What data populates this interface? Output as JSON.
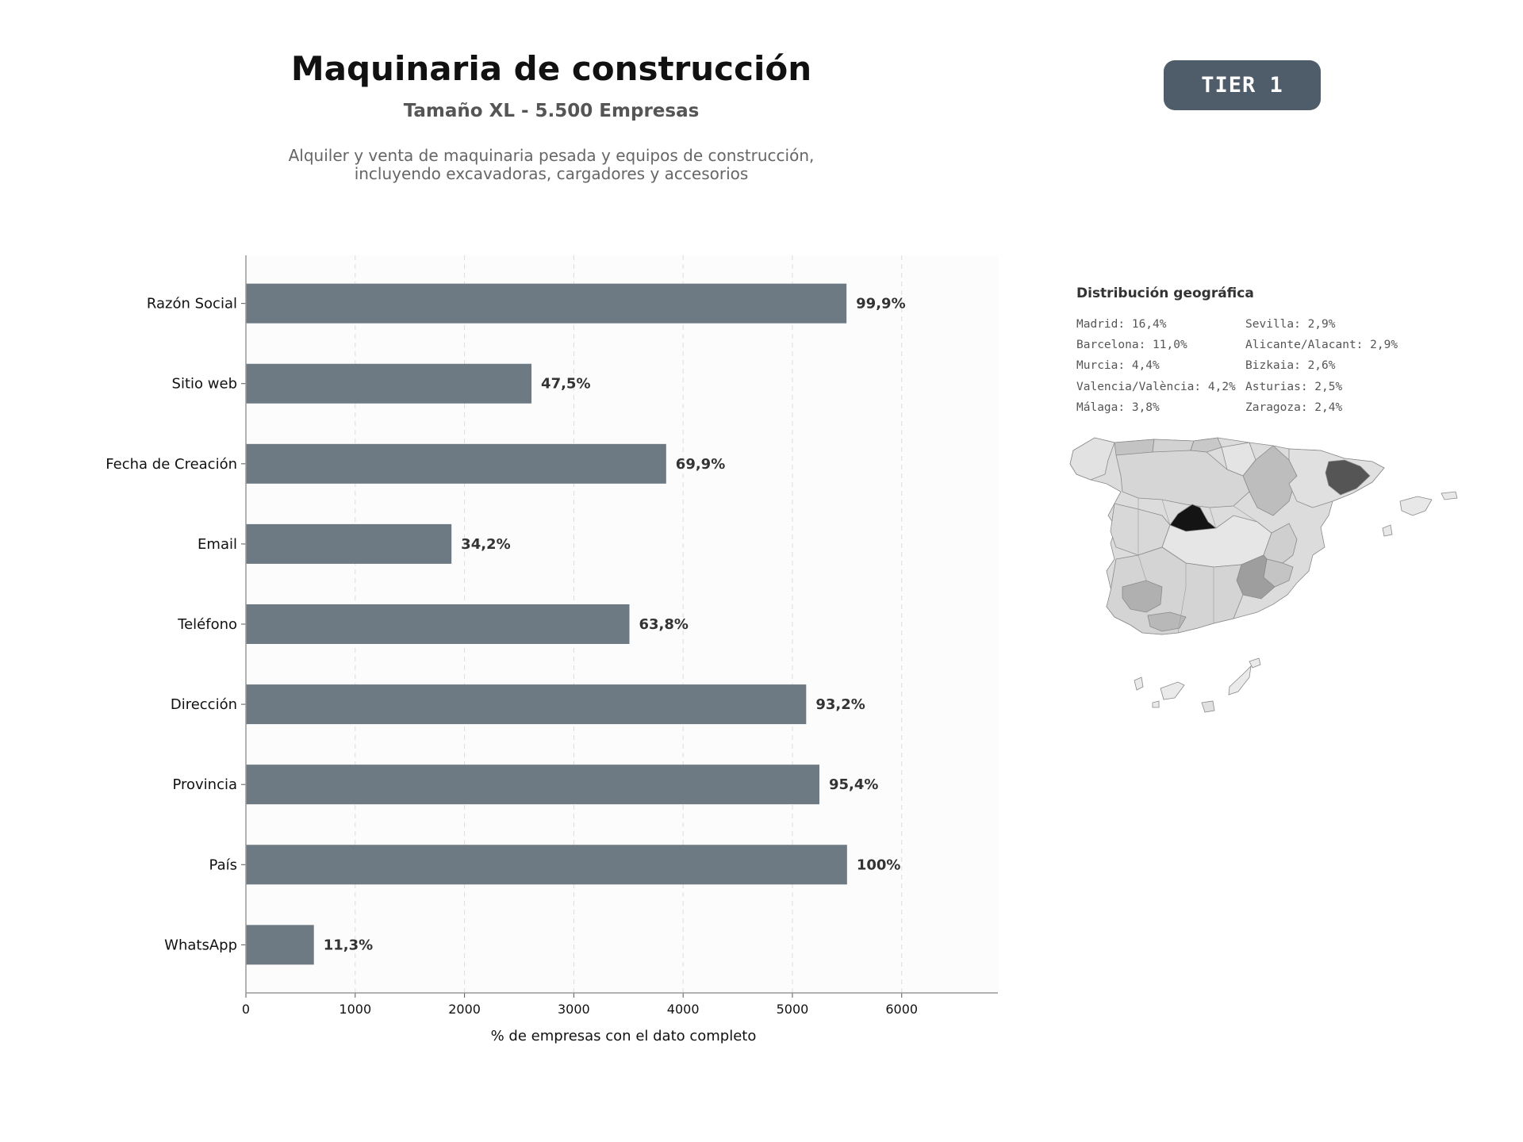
{
  "header": {
    "title": "Maquinaria de construcción",
    "subtitle": "Tamaño XL - 5.500 Empresas",
    "description_line1": "Alquiler y venta de maquinaria pesada y equipos de construcción,",
    "description_line2": "incluyendo excavadoras, cargadores y accesorios"
  },
  "badge": {
    "label": "TIER 1"
  },
  "chart_data": {
    "type": "bar",
    "orientation": "horizontal",
    "categories": [
      "Razón Social",
      "Sitio web",
      "Fecha de Creación",
      "Email",
      "Teléfono",
      "Dirección",
      "Provincia",
      "País",
      "WhatsApp"
    ],
    "values": [
      5495,
      2613,
      3845,
      1881,
      3509,
      5126,
      5247,
      5500,
      622
    ],
    "value_labels": [
      "99,9%",
      "47,5%",
      "69,9%",
      "34,2%",
      "63,8%",
      "93,2%",
      "95,4%",
      "100%",
      "11,3%"
    ],
    "xlabel": "% de empresas con el dato completo",
    "ylabel": "",
    "xlim": [
      0,
      6880
    ],
    "xticks": [
      0,
      1000,
      2000,
      3000,
      4000,
      5000,
      6000
    ],
    "grid": "x-dashed",
    "bar_color": "#6e7a83"
  },
  "geo": {
    "title": "Distribución geográfica",
    "col1": [
      "Madrid: 16,4%",
      "Barcelona: 11,0%",
      "Murcia: 4,4%",
      "Valencia/València: 4,2%",
      "Málaga: 3,8%"
    ],
    "col2": [
      "Sevilla: 2,9%",
      "Alicante/Alacant: 2,9%",
      "Bizkaia: 2,6%",
      "Asturias: 2,5%",
      "Zaragoza: 2,4%"
    ]
  }
}
